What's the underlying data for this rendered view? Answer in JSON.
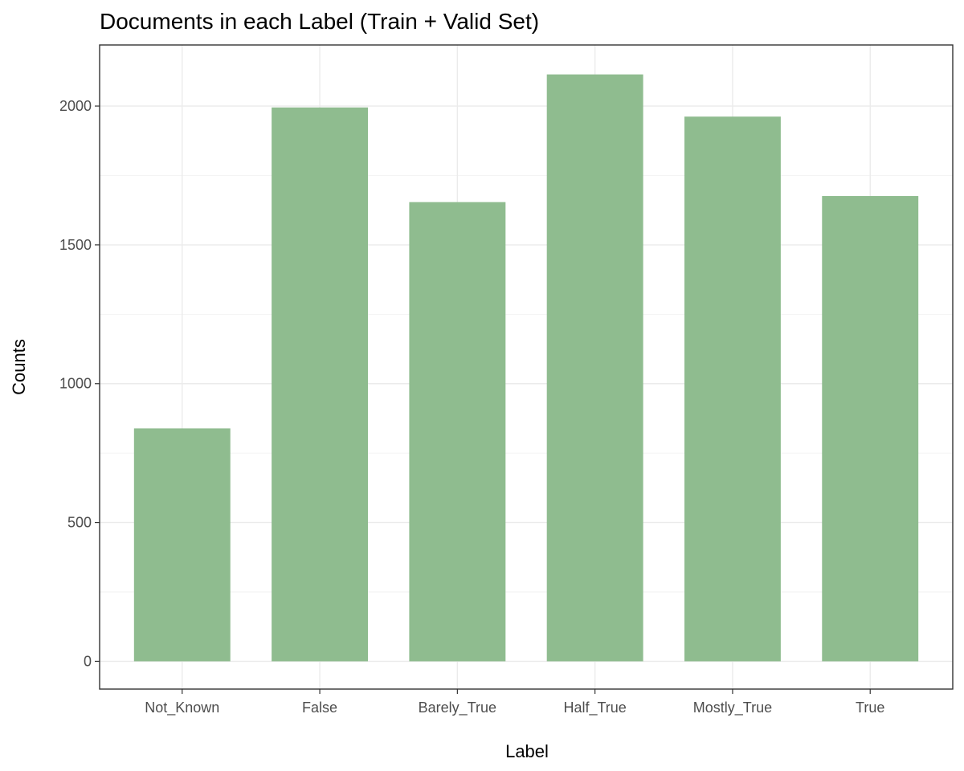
{
  "chart_data": {
    "type": "bar",
    "title": "Documents in each Label (Train + Valid Set)",
    "xlabel": "Label",
    "ylabel": "Counts",
    "categories": [
      "Not_Known",
      "False",
      "Barely_True",
      "Half_True",
      "Mostly_True",
      "True"
    ],
    "values": [
      839,
      1995,
      1654,
      2114,
      1962,
      1676
    ],
    "ylim": [
      -100,
      2220
    ],
    "yticks": [
      0,
      500,
      1000,
      1500,
      2000
    ],
    "ytick_labels": [
      "0",
      "500",
      "1000",
      "1500",
      "2000"
    ],
    "bar_color": "#8fbc8f",
    "grid": true,
    "legend": "none"
  }
}
